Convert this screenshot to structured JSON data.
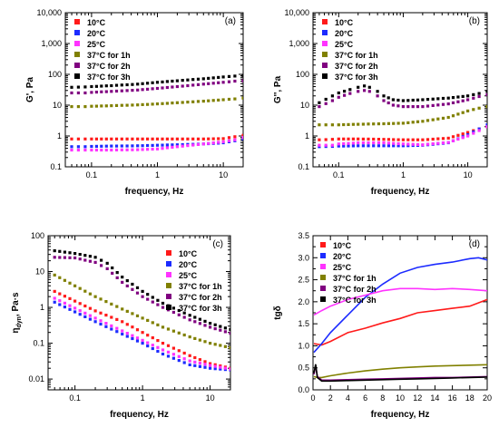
{
  "colors": {
    "10C": "#ff1a1a",
    "20C": "#1c2bff",
    "25C": "#ff33ff",
    "37C_1h": "#808000",
    "37C_2h": "#800080",
    "37C_3h": "#000000"
  },
  "chart_data": [
    {
      "id": "a",
      "letter": "(a)",
      "type": "scatter",
      "xlabel": "frequency, Hz",
      "ylabel": "G', Pa",
      "xscale": "log",
      "yscale": "log",
      "xlim": [
        0.04,
        20
      ],
      "ylim": [
        0.1,
        10000
      ],
      "xticks": [
        {
          "v": 0.1,
          "label": "0.1"
        },
        {
          "v": 1,
          "label": "1"
        },
        {
          "v": 10,
          "label": "10"
        }
      ],
      "yticks": [
        {
          "v": 0.1,
          "label": "0.1"
        },
        {
          "v": 1,
          "label": "1"
        },
        {
          "v": 10,
          "label": "10"
        },
        {
          "v": 100,
          "label": "100"
        },
        {
          "v": 1000,
          "label": "1,000"
        },
        {
          "v": 10000,
          "label": "10,000"
        }
      ],
      "legend": "top-left",
      "series": [
        {
          "name": "10°C",
          "color_key": "10C",
          "x": [
            0.05,
            0.08,
            0.1,
            0.2,
            0.5,
            1,
            2,
            5,
            10,
            15,
            20
          ],
          "y": [
            0.8,
            0.8,
            0.8,
            0.8,
            0.8,
            0.8,
            0.8,
            0.8,
            0.82,
            0.95,
            1.05
          ]
        },
        {
          "name": "20°C",
          "color_key": "20C",
          "x": [
            0.05,
            0.08,
            0.1,
            0.2,
            0.5,
            1,
            2,
            5,
            10,
            15,
            20
          ],
          "y": [
            0.45,
            0.45,
            0.46,
            0.47,
            0.48,
            0.5,
            0.52,
            0.55,
            0.6,
            0.7,
            0.8
          ]
        },
        {
          "name": "25°C",
          "color_key": "25C",
          "x": [
            0.05,
            0.08,
            0.1,
            0.2,
            0.5,
            1,
            2,
            5,
            10,
            15,
            20
          ],
          "y": [
            0.35,
            0.35,
            0.35,
            0.35,
            0.36,
            0.38,
            0.45,
            0.55,
            0.65,
            0.75,
            0.9
          ]
        },
        {
          "name": "37°C for 1h",
          "color_key": "37C_1h",
          "x": [
            0.05,
            0.08,
            0.1,
            0.2,
            0.5,
            1,
            2,
            5,
            10,
            15,
            20
          ],
          "y": [
            9,
            9,
            9.2,
            9.6,
            10.2,
            11,
            12,
            13.5,
            15,
            16,
            17
          ]
        },
        {
          "name": "37°C for 2h",
          "color_key": "37C_2h",
          "x": [
            0.05,
            0.08,
            0.1,
            0.2,
            0.5,
            1,
            2,
            5,
            10,
            15,
            20
          ],
          "y": [
            25,
            25,
            26,
            28,
            31,
            35,
            40,
            48,
            55,
            60,
            62
          ]
        },
        {
          "name": "37°C for 3h",
          "color_key": "37C_3h",
          "x": [
            0.05,
            0.08,
            0.1,
            0.2,
            0.5,
            1,
            2,
            5,
            10,
            15,
            20
          ],
          "y": [
            38,
            39,
            40,
            43,
            48,
            55,
            62,
            72,
            82,
            88,
            92
          ]
        }
      ]
    },
    {
      "id": "b",
      "letter": "(b)",
      "type": "scatter",
      "xlabel": "frequency, Hz",
      "ylabel": "G'', Pa",
      "xscale": "log",
      "yscale": "log",
      "xlim": [
        0.04,
        20
      ],
      "ylim": [
        0.1,
        10000
      ],
      "xticks": [
        {
          "v": 0.1,
          "label": "0.1"
        },
        {
          "v": 1,
          "label": "1"
        },
        {
          "v": 10,
          "label": "10"
        }
      ],
      "yticks": [
        {
          "v": 0.1,
          "label": "0.1"
        },
        {
          "v": 1,
          "label": "1"
        },
        {
          "v": 10,
          "label": "10"
        },
        {
          "v": 100,
          "label": "100"
        },
        {
          "v": 1000,
          "label": "1,000"
        },
        {
          "v": 10000,
          "label": "10,000"
        }
      ],
      "legend": "top-left",
      "series": [
        {
          "name": "10°C",
          "color_key": "10C",
          "x": [
            0.05,
            0.08,
            0.1,
            0.2,
            0.5,
            1,
            2,
            5,
            10,
            15,
            20
          ],
          "y": [
            0.75,
            0.78,
            0.8,
            0.8,
            0.78,
            0.75,
            0.75,
            0.85,
            1.3,
            1.7,
            2
          ]
        },
        {
          "name": "20°C",
          "color_key": "20C",
          "x": [
            0.05,
            0.08,
            0.1,
            0.2,
            0.5,
            1,
            2,
            5,
            10,
            15,
            20
          ],
          "y": [
            0.45,
            0.46,
            0.47,
            0.48,
            0.48,
            0.48,
            0.5,
            0.6,
            1.1,
            1.7,
            2.3
          ]
        },
        {
          "name": "25°C",
          "color_key": "25C",
          "x": [
            0.05,
            0.08,
            0.1,
            0.2,
            0.5,
            1,
            2,
            5,
            10,
            15,
            20
          ],
          "y": [
            0.5,
            0.5,
            0.55,
            0.6,
            0.6,
            0.55,
            0.52,
            0.62,
            1,
            1.5,
            2
          ]
        },
        {
          "name": "37°C for 1h",
          "color_key": "37C_1h",
          "x": [
            0.05,
            0.08,
            0.1,
            0.2,
            0.5,
            1,
            2,
            5,
            10,
            15,
            20
          ],
          "y": [
            2.3,
            2.3,
            2.3,
            2.4,
            2.5,
            2.6,
            3,
            4,
            6.5,
            8,
            9
          ]
        },
        {
          "name": "37°C for 2h",
          "color_key": "37C_2h",
          "x": [
            0.05,
            0.08,
            0.1,
            0.15,
            0.2,
            0.25,
            0.3,
            0.4,
            0.5,
            0.7,
            1,
            2,
            5,
            10,
            15,
            20
          ],
          "y": [
            9,
            14,
            18,
            24,
            28,
            30,
            28,
            20,
            14,
            10,
            9,
            9,
            11,
            15,
            19,
            22
          ]
        },
        {
          "name": "37°C for 3h",
          "color_key": "37C_3h",
          "x": [
            0.05,
            0.08,
            0.1,
            0.15,
            0.2,
            0.25,
            0.3,
            0.4,
            0.5,
            0.7,
            1,
            2,
            5,
            10,
            15,
            20
          ],
          "y": [
            12,
            20,
            25,
            32,
            38,
            42,
            38,
            28,
            20,
            15,
            14,
            15,
            17,
            20,
            24,
            28
          ]
        }
      ]
    },
    {
      "id": "c",
      "letter": "(c)",
      "type": "scatter",
      "xlabel": "frequency, Hz",
      "ylabel": "η_dyn, Pa·s",
      "ylabel_main": "η",
      "ylabel_sub": "dyn",
      "ylabel_rest": ", Pa·s",
      "xscale": "log",
      "yscale": "log",
      "xlim": [
        0.04,
        20
      ],
      "ylim": [
        0.005,
        100
      ],
      "xticks": [
        {
          "v": 0.1,
          "label": "0.1"
        },
        {
          "v": 1,
          "label": "1"
        },
        {
          "v": 10,
          "label": "10"
        }
      ],
      "yticks": [
        {
          "v": 0.01,
          "label": "0.01"
        },
        {
          "v": 0.1,
          "label": "0.1"
        },
        {
          "v": 1,
          "label": "1"
        },
        {
          "v": 10,
          "label": "10"
        },
        {
          "v": 100,
          "label": "100"
        }
      ],
      "legend": "right",
      "series": [
        {
          "name": "10°C",
          "color_key": "10C",
          "x": [
            0.05,
            0.1,
            0.2,
            0.5,
            1,
            2,
            5,
            10,
            20
          ],
          "y": [
            2.8,
            1.5,
            0.8,
            0.4,
            0.2,
            0.1,
            0.045,
            0.027,
            0.02
          ]
        },
        {
          "name": "20°C",
          "color_key": "20C",
          "x": [
            0.05,
            0.1,
            0.2,
            0.5,
            1,
            2,
            5,
            10,
            20
          ],
          "y": [
            1.4,
            0.75,
            0.4,
            0.18,
            0.1,
            0.05,
            0.025,
            0.02,
            0.018
          ]
        },
        {
          "name": "25°C",
          "color_key": "25C",
          "x": [
            0.05,
            0.1,
            0.2,
            0.5,
            1,
            2,
            5,
            10,
            20
          ],
          "y": [
            1.8,
            0.95,
            0.5,
            0.22,
            0.12,
            0.065,
            0.032,
            0.024,
            0.019
          ]
        },
        {
          "name": "37°C for 1h",
          "color_key": "37C_1h",
          "x": [
            0.05,
            0.1,
            0.2,
            0.5,
            1,
            2,
            5,
            10,
            20
          ],
          "y": [
            8,
            4,
            2,
            0.9,
            0.5,
            0.28,
            0.15,
            0.1,
            0.075
          ]
        },
        {
          "name": "37°C for 2h",
          "color_key": "37C_2h",
          "x": [
            0.05,
            0.1,
            0.2,
            0.3,
            0.5,
            1,
            2,
            5,
            10,
            20
          ],
          "y": [
            25,
            24,
            18,
            12,
            5,
            2,
            1,
            0.45,
            0.28,
            0.19
          ]
        },
        {
          "name": "37°C for 3h",
          "color_key": "37C_3h",
          "x": [
            0.05,
            0.1,
            0.2,
            0.3,
            0.5,
            1,
            2,
            5,
            10,
            20
          ],
          "y": [
            38,
            32,
            25,
            17,
            7,
            2.8,
            1.3,
            0.6,
            0.36,
            0.24
          ]
        }
      ]
    },
    {
      "id": "d",
      "letter": "(d)",
      "type": "line",
      "xlabel": "frequency, Hz",
      "ylabel": "tgδ",
      "xscale": "linear",
      "yscale": "linear",
      "xlim": [
        0,
        20
      ],
      "ylim": [
        0,
        3.5
      ],
      "xticks": [
        {
          "v": 0,
          "label": "0"
        },
        {
          "v": 2,
          "label": "2"
        },
        {
          "v": 4,
          "label": "4"
        },
        {
          "v": 6,
          "label": "6"
        },
        {
          "v": 8,
          "label": "8"
        },
        {
          "v": 10,
          "label": "10"
        },
        {
          "v": 12,
          "label": "12"
        },
        {
          "v": 14,
          "label": "14"
        },
        {
          "v": 16,
          "label": "16"
        },
        {
          "v": 18,
          "label": "18"
        },
        {
          "v": 20,
          "label": "20"
        }
      ],
      "yticks": [
        {
          "v": 0,
          "label": "0.0"
        },
        {
          "v": 0.5,
          "label": "0.5"
        },
        {
          "v": 1,
          "label": "1.0"
        },
        {
          "v": 1.5,
          "label": "1.5"
        },
        {
          "v": 2,
          "label": "2.0"
        },
        {
          "v": 2.5,
          "label": "2.5"
        },
        {
          "v": 3,
          "label": "3.0"
        },
        {
          "v": 3.5,
          "label": "3.5"
        }
      ],
      "legend": "top-left",
      "series": [
        {
          "name": "10°C",
          "color_key": "10C",
          "x": [
            0.1,
            1,
            2,
            4,
            6,
            8,
            10,
            12,
            14,
            16,
            18,
            20
          ],
          "y": [
            1.05,
            1.02,
            1.1,
            1.3,
            1.4,
            1.52,
            1.62,
            1.75,
            1.8,
            1.85,
            1.9,
            2.05
          ]
        },
        {
          "name": "20°C",
          "color_key": "20C",
          "x": [
            0.1,
            1,
            2,
            4,
            6,
            8,
            10,
            12,
            14,
            16,
            18,
            19,
            20
          ],
          "y": [
            0.85,
            1.05,
            1.3,
            1.7,
            2.1,
            2.4,
            2.65,
            2.78,
            2.85,
            2.9,
            2.98,
            3.0,
            2.95
          ]
        },
        {
          "name": "25°C",
          "color_key": "25C",
          "x": [
            0.1,
            1,
            2,
            4,
            6,
            8,
            10,
            12,
            14,
            16,
            18,
            20
          ],
          "y": [
            1.7,
            1.8,
            1.9,
            2.05,
            2.15,
            2.25,
            2.3,
            2.3,
            2.28,
            2.3,
            2.28,
            2.25
          ]
        },
        {
          "name": "37°C for 1h",
          "color_key": "37C_1h",
          "x": [
            0.1,
            0.5,
            1,
            2,
            4,
            6,
            8,
            10,
            12,
            14,
            16,
            18,
            20
          ],
          "y": [
            0.3,
            0.28,
            0.28,
            0.32,
            0.38,
            0.43,
            0.47,
            0.5,
            0.52,
            0.54,
            0.55,
            0.56,
            0.57
          ]
        },
        {
          "name": "37°C for 2h",
          "color_key": "37C_2h",
          "x": [
            0.1,
            0.3,
            0.5,
            1,
            2,
            4,
            6,
            8,
            10,
            12,
            14,
            16,
            18,
            20
          ],
          "y": [
            0.35,
            0.55,
            0.3,
            0.22,
            0.22,
            0.23,
            0.24,
            0.25,
            0.26,
            0.27,
            0.28,
            0.28,
            0.29,
            0.3
          ]
        },
        {
          "name": "37°C for 3h",
          "color_key": "37C_3h",
          "x": [
            0.1,
            0.3,
            0.5,
            1,
            2,
            4,
            6,
            8,
            10,
            12,
            14,
            16,
            18,
            20
          ],
          "y": [
            0.38,
            0.58,
            0.28,
            0.2,
            0.2,
            0.21,
            0.22,
            0.23,
            0.24,
            0.25,
            0.26,
            0.27,
            0.28,
            0.29
          ]
        }
      ]
    }
  ]
}
